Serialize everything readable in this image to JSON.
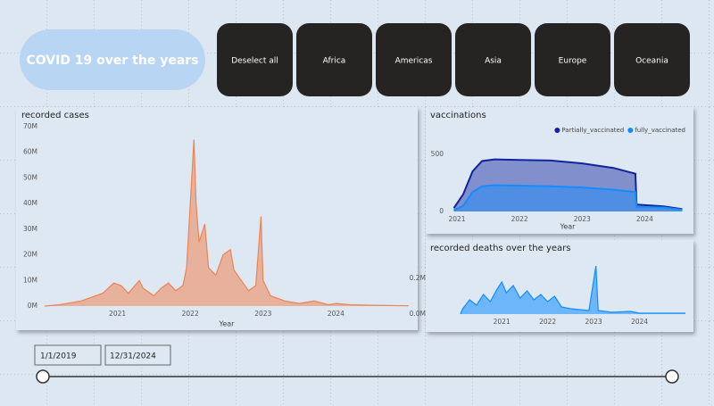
{
  "header": {
    "title": "COVID 19 over the years"
  },
  "buttons": [
    "Deselect all",
    "Africa",
    "Americas",
    "Asia",
    "Europe",
    "Oceania"
  ],
  "slicer": {
    "start": "1/1/2019",
    "end": "12/31/2024"
  },
  "chart_data": [
    {
      "type": "area",
      "title": "recorded cases",
      "x_label": "Year",
      "color": "#ee8354",
      "x": [
        2020.0,
        2020.2,
        2020.5,
        2020.8,
        2020.95,
        2021.05,
        2021.15,
        2021.3,
        2021.35,
        2021.5,
        2021.6,
        2021.7,
        2021.8,
        2021.9,
        2021.95,
        2022.0,
        2022.05,
        2022.08,
        2022.12,
        2022.2,
        2022.25,
        2022.35,
        2022.45,
        2022.55,
        2022.6,
        2022.7,
        2022.8,
        2022.9,
        2022.97,
        2023.0,
        2023.1,
        2023.3,
        2023.5,
        2023.7,
        2023.9,
        2024.0,
        2024.2,
        2024.5,
        2025.0
      ],
      "values": [
        0,
        500000,
        2000000,
        5000000,
        9000000,
        8000000,
        5000000,
        10000000,
        7000000,
        4000000,
        7000000,
        9000000,
        6000000,
        8000000,
        15000000,
        40000000,
        65000000,
        40000000,
        25000000,
        32000000,
        15000000,
        12000000,
        20000000,
        22000000,
        14000000,
        10000000,
        6000000,
        8000000,
        35000000,
        10000000,
        4000000,
        2000000,
        1000000,
        2000000,
        500000,
        1000000,
        500000,
        300000,
        100000
      ],
      "xlim": [
        2020,
        2025
      ],
      "xticks": [
        2021,
        2022,
        2023,
        2024
      ],
      "ylim": [
        0,
        70000000
      ],
      "yticks": [
        {
          "value": 0,
          "label": "0M"
        },
        {
          "value": 10000000,
          "label": "10M"
        },
        {
          "value": 20000000,
          "label": "20M"
        },
        {
          "value": 30000000,
          "label": "30M"
        },
        {
          "value": 40000000,
          "label": "40M"
        },
        {
          "value": 50000000,
          "label": "50M"
        },
        {
          "value": 60000000,
          "label": "60M"
        },
        {
          "value": 70000000,
          "label": "70M"
        }
      ],
      "grid": false
    },
    {
      "type": "area",
      "title": "vaccinations",
      "x_label": "Year",
      "x": [
        2020.95,
        2021.1,
        2021.25,
        2021.4,
        2021.6,
        2022.0,
        2022.5,
        2023.0,
        2023.5,
        2023.85,
        2023.87,
        2024.3,
        2024.6
      ],
      "series": [
        {
          "name": "Partially_vaccinated",
          "color": "#12239e",
          "values": [
            30,
            150,
            350,
            440,
            455,
            450,
            445,
            420,
            380,
            330,
            60,
            45,
            20
          ]
        },
        {
          "name": "fully_vaccinated",
          "color": "#118dff",
          "values": [
            10,
            50,
            170,
            220,
            230,
            225,
            220,
            210,
            190,
            170,
            40,
            35,
            15
          ]
        }
      ],
      "xlim": [
        2020.9,
        2024.65
      ],
      "xticks": [
        2021,
        2022,
        2023,
        2024
      ],
      "ylim": [
        0,
        600
      ],
      "yticks": [
        0,
        500
      ],
      "grid": false
    },
    {
      "type": "area",
      "title": "recorded deaths over the years",
      "color": "#118dff",
      "x": [
        2020.1,
        2020.15,
        2020.3,
        2020.45,
        2020.6,
        2020.75,
        2020.9,
        2021.0,
        2021.1,
        2021.25,
        2021.4,
        2021.55,
        2021.7,
        2021.85,
        2022.0,
        2022.15,
        2022.3,
        2022.5,
        2022.9,
        2023.05,
        2023.1,
        2023.4,
        2023.8,
        2024.0,
        2025.0
      ],
      "values": [
        0,
        30000,
        80000,
        50000,
        110000,
        70000,
        140000,
        180000,
        120000,
        160000,
        90000,
        130000,
        80000,
        110000,
        70000,
        100000,
        40000,
        30000,
        20000,
        270000,
        20000,
        10000,
        15000,
        5000,
        5000
      ],
      "xlim": [
        2019.5,
        2025
      ],
      "xticks": [
        2021,
        2022,
        2023,
        2024
      ],
      "ylim": [
        0,
        310000
      ],
      "yticks": [
        {
          "value": 0,
          "label": "0.0M"
        },
        {
          "value": 200000,
          "label": "0.2M"
        }
      ],
      "grid": false
    }
  ]
}
